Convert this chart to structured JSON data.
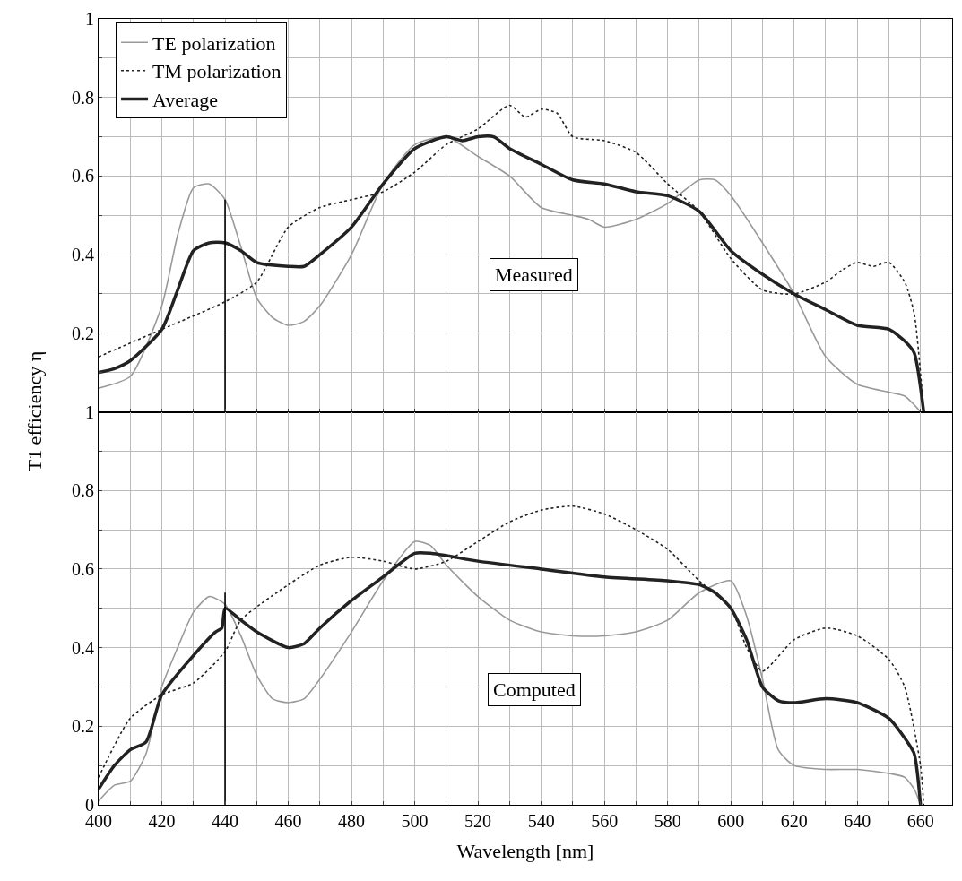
{
  "chart_data": [
    {
      "type": "line",
      "xlim": [
        400,
        670
      ],
      "ylim": [
        0,
        1
      ],
      "tick_labels": "y",
      "grid": true,
      "legend": "top left",
      "marker": "none",
      "annotations": [
        "Measured"
      ],
      "xticks": [
        400,
        {
          "value": 410,
          "label": null
        },
        420,
        {
          "value": 430,
          "label": null
        },
        440,
        {
          "value": 450,
          "label": null
        },
        460,
        {
          "value": 470,
          "label": null
        },
        480,
        {
          "value": 490,
          "label": null
        },
        500,
        {
          "value": 510,
          "label": null
        },
        520,
        {
          "value": 530,
          "label": null
        },
        540,
        {
          "value": 550,
          "label": null
        },
        560,
        {
          "value": 570,
          "label": null
        },
        580,
        {
          "value": 590,
          "label": null
        },
        600,
        {
          "value": 610,
          "label": null
        },
        620,
        {
          "value": 630,
          "label": null
        },
        640,
        {
          "value": 650,
          "label": null
        },
        660,
        {
          "value": 670,
          "label": null
        }
      ],
      "yticks": [
        {
          "value": 0,
          "label": null
        },
        {
          "value": 0.1,
          "label": null
        },
        0.2,
        {
          "value": 0.3,
          "label": null
        },
        0.4,
        {
          "value": 0.5,
          "label": null
        },
        0.6,
        {
          "value": 0.7,
          "label": null
        },
        0.8,
        {
          "value": 0.9,
          "label": null
        },
        1
      ],
      "series": [
        {
          "name": "TE polarization",
          "color": "#999999",
          "line_style": "solid",
          "x": [
            400,
            410,
            420,
            425,
            430,
            435,
            440,
            445,
            450,
            455,
            460,
            465,
            470,
            480,
            490,
            500,
            510,
            520,
            530,
            540,
            550,
            555,
            560,
            570,
            580,
            590,
            595,
            600,
            610,
            620,
            630,
            640,
            650,
            655,
            660
          ],
          "values": [
            0.06,
            0.09,
            0.27,
            0.45,
            0.57,
            0.58,
            0.54,
            0.42,
            0.29,
            0.24,
            0.22,
            0.23,
            0.27,
            0.4,
            0.58,
            0.68,
            0.7,
            0.65,
            0.6,
            0.52,
            0.5,
            0.49,
            0.47,
            0.49,
            0.53,
            0.59,
            0.59,
            0.55,
            0.43,
            0.3,
            0.14,
            0.07,
            0.05,
            0.04,
            0.0
          ]
        },
        {
          "name": "TM polarization",
          "color": "#222222",
          "line_style": "dotted",
          "x": [
            400,
            420,
            440,
            450,
            460,
            470,
            480,
            490,
            500,
            510,
            520,
            530,
            535,
            540,
            545,
            550,
            560,
            570,
            580,
            590,
            600,
            610,
            620,
            630,
            635,
            640,
            645,
            650,
            655,
            658,
            661
          ],
          "values": [
            0.14,
            0.21,
            0.28,
            0.33,
            0.47,
            0.52,
            0.54,
            0.56,
            0.61,
            0.68,
            0.72,
            0.78,
            0.75,
            0.77,
            0.76,
            0.7,
            0.69,
            0.66,
            0.58,
            0.51,
            0.39,
            0.31,
            0.3,
            0.33,
            0.36,
            0.38,
            0.37,
            0.38,
            0.33,
            0.25,
            0.0
          ]
        },
        {
          "name": "Average",
          "color": "#222222",
          "line_style": "solid",
          "x": [
            400,
            405,
            410,
            420,
            425,
            430,
            435,
            440,
            445,
            450,
            460,
            465,
            470,
            480,
            490,
            500,
            510,
            515,
            520,
            525,
            530,
            540,
            550,
            560,
            570,
            580,
            590,
            600,
            610,
            620,
            630,
            640,
            650,
            655,
            658,
            661
          ],
          "values": [
            0.1,
            0.11,
            0.13,
            0.21,
            0.31,
            0.41,
            0.43,
            0.43,
            0.41,
            0.38,
            0.37,
            0.37,
            0.4,
            0.47,
            0.58,
            0.67,
            0.7,
            0.69,
            0.7,
            0.7,
            0.67,
            0.63,
            0.59,
            0.58,
            0.56,
            0.55,
            0.51,
            0.41,
            0.35,
            0.3,
            0.26,
            0.22,
            0.21,
            0.18,
            0.15,
            0.0
          ]
        },
        {
          "color": "#000000",
          "line_style": "solid",
          "x": [
            440,
            440
          ],
          "values": [
            0,
            0.54
          ]
        }
      ]
    },
    {
      "type": "line",
      "xlim": [
        400,
        670
      ],
      "ylim": [
        0,
        1
      ],
      "grid": true,
      "marker": "none",
      "xlabel": "Wavelength [nm]",
      "ylabel": "T1 efficiency η",
      "annotations": [
        "Computed"
      ],
      "xticks": [
        400,
        {
          "value": 410,
          "label": null
        },
        420,
        {
          "value": 430,
          "label": null
        },
        440,
        {
          "value": 450,
          "label": null
        },
        460,
        {
          "value": 470,
          "label": null
        },
        480,
        {
          "value": 490,
          "label": null
        },
        500,
        {
          "value": 510,
          "label": null
        },
        520,
        {
          "value": 530,
          "label": null
        },
        540,
        {
          "value": 550,
          "label": null
        },
        560,
        {
          "value": 570,
          "label": null
        },
        580,
        {
          "value": 590,
          "label": null
        },
        600,
        {
          "value": 610,
          "label": null
        },
        620,
        {
          "value": 630,
          "label": null
        },
        640,
        {
          "value": 650,
          "label": null
        },
        660,
        {
          "value": 670,
          "label": null
        }
      ],
      "yticks": [
        0,
        {
          "value": 0.1,
          "label": null
        },
        0.2,
        {
          "value": 0.3,
          "label": null
        },
        0.4,
        {
          "value": 0.5,
          "label": null
        },
        0.6,
        {
          "value": 0.7,
          "label": null
        },
        0.8,
        {
          "value": 0.9,
          "label": null
        },
        1
      ],
      "series": [
        {
          "color": "#999999",
          "line_style": "solid",
          "x": [
            400,
            405,
            410,
            415,
            420,
            425,
            430,
            435,
            440,
            445,
            450,
            455,
            460,
            465,
            470,
            480,
            490,
            500,
            505,
            510,
            520,
            530,
            540,
            550,
            560,
            570,
            580,
            590,
            600,
            605,
            610,
            615,
            620,
            630,
            640,
            650,
            655,
            658,
            660
          ],
          "values": [
            0.01,
            0.05,
            0.06,
            0.13,
            0.3,
            0.4,
            0.49,
            0.53,
            0.51,
            0.43,
            0.33,
            0.27,
            0.26,
            0.27,
            0.32,
            0.44,
            0.57,
            0.67,
            0.66,
            0.61,
            0.53,
            0.47,
            0.44,
            0.43,
            0.43,
            0.44,
            0.47,
            0.54,
            0.57,
            0.48,
            0.32,
            0.14,
            0.1,
            0.09,
            0.09,
            0.08,
            0.07,
            0.04,
            0.0
          ]
        },
        {
          "color": "#222222",
          "line_style": "dotted",
          "x": [
            400,
            410,
            420,
            430,
            440,
            445,
            460,
            470,
            480,
            490,
            500,
            510,
            520,
            530,
            540,
            550,
            560,
            570,
            580,
            590,
            600,
            605,
            610,
            620,
            630,
            640,
            650,
            655,
            660,
            661
          ],
          "values": [
            0.07,
            0.22,
            0.28,
            0.31,
            0.39,
            0.47,
            0.56,
            0.61,
            0.63,
            0.62,
            0.6,
            0.62,
            0.67,
            0.72,
            0.75,
            0.76,
            0.74,
            0.7,
            0.65,
            0.57,
            0.5,
            0.4,
            0.34,
            0.42,
            0.45,
            0.43,
            0.37,
            0.3,
            0.1,
            0.0
          ]
        },
        {
          "color": "#222222",
          "line_style": "solid",
          "x": [
            400,
            405,
            410,
            415,
            420,
            430,
            437,
            439,
            440,
            445,
            450,
            460,
            465,
            470,
            480,
            490,
            500,
            505,
            520,
            540,
            560,
            580,
            590,
            595,
            600,
            605,
            610,
            615,
            620,
            630,
            640,
            650,
            655,
            658,
            660
          ],
          "values": [
            0.04,
            0.1,
            0.14,
            0.16,
            0.28,
            0.38,
            0.44,
            0.45,
            0.5,
            0.47,
            0.44,
            0.4,
            0.41,
            0.45,
            0.52,
            0.58,
            0.64,
            0.64,
            0.62,
            0.6,
            0.58,
            0.57,
            0.56,
            0.54,
            0.5,
            0.42,
            0.3,
            0.265,
            0.26,
            0.27,
            0.26,
            0.22,
            0.17,
            0.13,
            0.0
          ]
        },
        {
          "color": "#000000",
          "line_style": "solid",
          "x": [
            440,
            440
          ],
          "values": [
            0,
            0.54
          ]
        }
      ]
    }
  ]
}
